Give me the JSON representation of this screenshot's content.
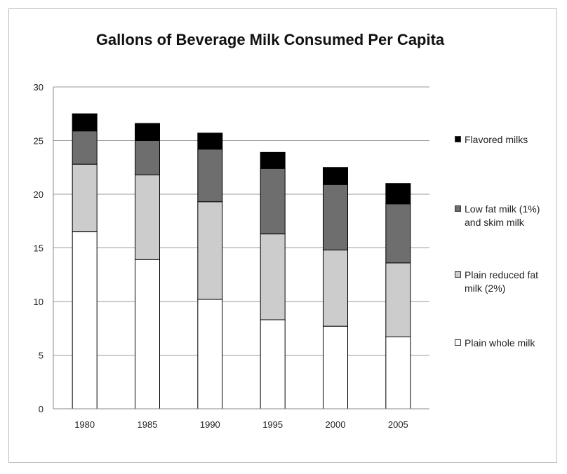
{
  "chart_data": {
    "type": "bar",
    "stacked": true,
    "title": "Gallons of Beverage Milk Consumed Per Capita",
    "xlabel": "",
    "ylabel": "",
    "ylim": [
      0,
      30
    ],
    "yticks": [
      0,
      5,
      10,
      15,
      20,
      25,
      30
    ],
    "grid": true,
    "legend_position": "right",
    "categories": [
      "1980",
      "1985",
      "1990",
      "1995",
      "2000",
      "2005"
    ],
    "series": [
      {
        "name": "Plain whole milk",
        "color": "#ffffff",
        "values": [
          16.5,
          13.9,
          10.2,
          8.3,
          7.7,
          6.7
        ]
      },
      {
        "name": "Plain reduced fat milk (2%)",
        "color": "#cccccc",
        "values": [
          6.3,
          7.9,
          9.1,
          8.0,
          7.1,
          6.9
        ]
      },
      {
        "name": "Low fat milk (1%) and skim milk",
        "color": "#6e6e6e",
        "values": [
          3.1,
          3.2,
          4.9,
          6.1,
          6.1,
          5.5
        ]
      },
      {
        "name": "Flavored milks",
        "color": "#000000",
        "values": [
          1.6,
          1.6,
          1.5,
          1.5,
          1.6,
          1.9
        ]
      }
    ]
  }
}
